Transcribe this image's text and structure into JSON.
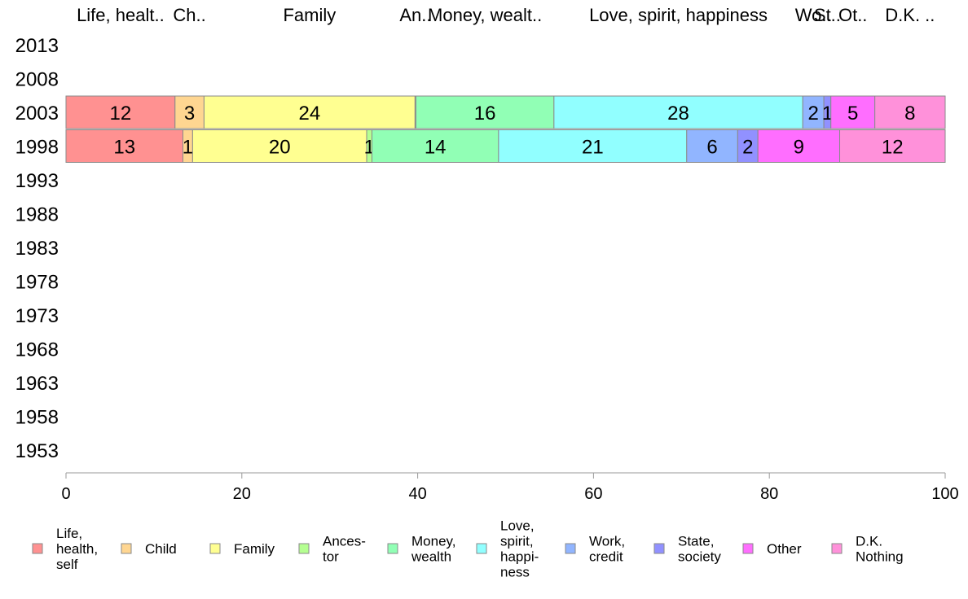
{
  "chart_data": {
    "type": "bar",
    "orientation": "horizontal-stacked",
    "categories": [
      "2013",
      "2008",
      "2003",
      "1998",
      "1993",
      "1988",
      "1983",
      "1978",
      "1973",
      "1968",
      "1963",
      "1958",
      "1953"
    ],
    "top_labels": [
      "Life, healt..",
      "Ch..",
      "Family",
      "An..",
      "Money, wealt..",
      "Love, spirit, happiness",
      "Wo..",
      "St..",
      "Ot..",
      "D.K. .."
    ],
    "series": [
      {
        "name": "Life, health, self",
        "legend": [
          "Life,",
          "health,",
          "self"
        ],
        "color": "#FF9191",
        "values": [
          null,
          null,
          12.4,
          13.3,
          null,
          null,
          null,
          null,
          null,
          null,
          null,
          null,
          null
        ],
        "labels": [
          "",
          "",
          "12",
          "13",
          "",
          "",
          "",
          "",
          "",
          "",
          "",
          "",
          ""
        ]
      },
      {
        "name": "Child",
        "legend": [
          "Child"
        ],
        "color": "#FFD691",
        "values": [
          null,
          null,
          3.3,
          1.1,
          null,
          null,
          null,
          null,
          null,
          null,
          null,
          null,
          null
        ],
        "labels": [
          "",
          "",
          "3",
          "1",
          "",
          "",
          "",
          "",
          "",
          "",
          "",
          "",
          ""
        ]
      },
      {
        "name": "Family",
        "legend": [
          "Family"
        ],
        "color": "#FFFF91",
        "values": [
          null,
          null,
          24.0,
          19.8,
          null,
          null,
          null,
          null,
          null,
          null,
          null,
          null,
          null
        ],
        "labels": [
          "",
          "",
          "24",
          "20",
          "",
          "",
          "",
          "",
          "",
          "",
          "",
          "",
          ""
        ]
      },
      {
        "name": "Ancestor",
        "legend": [
          "Ances-",
          "tor"
        ],
        "color": "#B5FF91",
        "values": [
          null,
          null,
          0.1,
          0.6,
          null,
          null,
          null,
          null,
          null,
          null,
          null,
          null,
          null
        ],
        "labels": [
          "",
          "",
          "",
          "1",
          "",
          "",
          "",
          "",
          "",
          "",
          "",
          "",
          ""
        ]
      },
      {
        "name": "Money, wealth",
        "legend": [
          "Money,",
          "wealth"
        ],
        "color": "#91FFB5",
        "values": [
          null,
          null,
          15.7,
          14.4,
          null,
          null,
          null,
          null,
          null,
          null,
          null,
          null,
          null
        ],
        "labels": [
          "",
          "",
          "16",
          "14",
          "",
          "",
          "",
          "",
          "",
          "",
          "",
          "",
          ""
        ]
      },
      {
        "name": "Love, spirit, happiness",
        "legend": [
          "Love,",
          "spirit,",
          "happi-",
          "ness"
        ],
        "color": "#91FFFF",
        "values": [
          null,
          null,
          28.3,
          21.4,
          null,
          null,
          null,
          null,
          null,
          null,
          null,
          null,
          null
        ],
        "labels": [
          "",
          "",
          "28",
          "21",
          "",
          "",
          "",
          "",
          "",
          "",
          "",
          "",
          ""
        ]
      },
      {
        "name": "Work, credit",
        "legend": [
          "Work,",
          "credit"
        ],
        "color": "#91B5FF",
        "values": [
          null,
          null,
          2.4,
          5.8,
          null,
          null,
          null,
          null,
          null,
          null,
          null,
          null,
          null
        ],
        "labels": [
          "",
          "",
          "2",
          "6",
          "",
          "",
          "",
          "",
          "",
          "",
          "",
          "",
          ""
        ]
      },
      {
        "name": "State, society",
        "legend": [
          "State,",
          "society"
        ],
        "color": "#9191FF",
        "values": [
          null,
          null,
          0.8,
          2.3,
          null,
          null,
          null,
          null,
          null,
          null,
          null,
          null,
          null
        ],
        "labels": [
          "",
          "",
          "1",
          "2",
          "",
          "",
          "",
          "",
          "",
          "",
          "",
          "",
          ""
        ]
      },
      {
        "name": "Other",
        "legend": [
          "Other"
        ],
        "color": "#FF6EFF",
        "values": [
          null,
          null,
          5.0,
          9.3,
          null,
          null,
          null,
          null,
          null,
          null,
          null,
          null,
          null
        ],
        "labels": [
          "",
          "",
          "5",
          "9",
          "",
          "",
          "",
          "",
          "",
          "",
          "",
          "",
          ""
        ]
      },
      {
        "name": "D.K. Nothing",
        "legend": [
          "D.K.",
          "Nothing"
        ],
        "color": "#FF91DA",
        "values": [
          null,
          null,
          8.0,
          12.0,
          null,
          null,
          null,
          null,
          null,
          null,
          null,
          null,
          null
        ],
        "labels": [
          "",
          "",
          "8",
          "12",
          "",
          "",
          "",
          "",
          "",
          "",
          "",
          "",
          ""
        ]
      }
    ],
    "x_ticks": [
      "0",
      "20",
      "40",
      "60",
      "80",
      "100"
    ],
    "xlim": [
      0,
      100
    ],
    "grid": false,
    "legend_position": "bottom"
  }
}
